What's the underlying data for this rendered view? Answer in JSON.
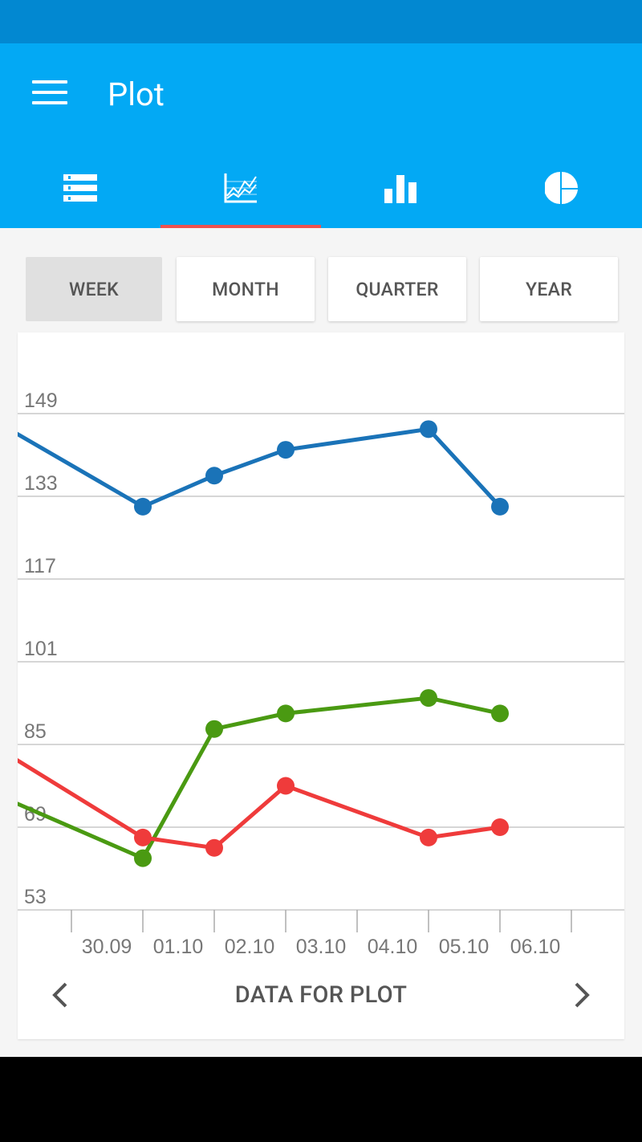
{
  "app": {
    "title": "Plot",
    "tabs": [
      {
        "icon": "list-icon"
      },
      {
        "icon": "line-chart-icon",
        "selected": true
      },
      {
        "icon": "bar-chart-icon"
      },
      {
        "icon": "pie-chart-icon"
      }
    ]
  },
  "colors": {
    "status_bar": "#0288d1",
    "app_bar": "#03a9f4",
    "tab_indicator": "#ef5350",
    "series_blue": "#1a73b8",
    "series_green": "#4a9a12",
    "series_red": "#ef3b3b"
  },
  "periods": {
    "selected": "WEEK",
    "options": [
      "WEEK",
      "MONTH",
      "QUARTER",
      "YEAR"
    ]
  },
  "chart_data": {
    "type": "line",
    "categories": [
      "30.09",
      "01.10",
      "02.10",
      "03.10",
      "04.10",
      "05.10",
      "06.10"
    ],
    "y_ticks": [
      149,
      133,
      117,
      101,
      85,
      69,
      53
    ],
    "ylim": [
      53,
      149
    ],
    "grid": true,
    "series": [
      {
        "color": "#1a73b8",
        "points": [
          {
            "x": "2016-09-29",
            "y": 147
          },
          {
            "x": "2016-10-01",
            "y": 131
          },
          {
            "x": "2016-10-02",
            "y": 137
          },
          {
            "x": "2016-10-03",
            "y": 142
          },
          {
            "x": "2016-10-05",
            "y": 146
          },
          {
            "x": "2016-10-06",
            "y": 131
          }
        ]
      },
      {
        "color": "#4a9a12",
        "points": [
          {
            "x": "2016-09-29",
            "y": 75
          },
          {
            "x": "2016-10-01",
            "y": 63
          },
          {
            "x": "2016-10-02",
            "y": 88
          },
          {
            "x": "2016-10-03",
            "y": 91
          },
          {
            "x": "2016-10-05",
            "y": 94
          },
          {
            "x": "2016-10-06",
            "y": 91
          }
        ]
      },
      {
        "color": "#ef3b3b",
        "points": [
          {
            "x": "2016-09-29",
            "y": 84
          },
          {
            "x": "2016-10-01",
            "y": 67
          },
          {
            "x": "2016-10-02",
            "y": 65
          },
          {
            "x": "2016-10-03",
            "y": 77
          },
          {
            "x": "2016-10-05",
            "y": 67
          },
          {
            "x": "2016-10-06",
            "y": 69
          }
        ]
      }
    ]
  },
  "footer": {
    "title": "DATA FOR PLOT",
    "prev_icon": "chevron-left-icon",
    "next_icon": "chevron-right-icon"
  }
}
